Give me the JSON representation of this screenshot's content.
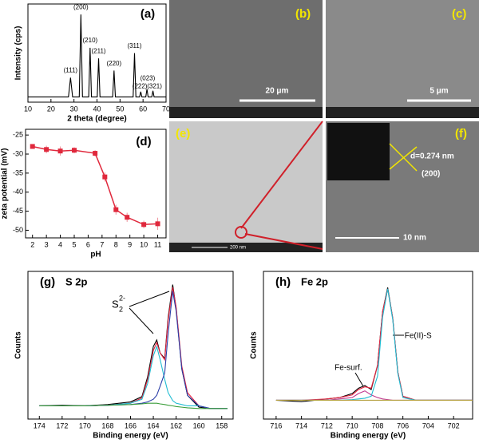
{
  "chart_data": [
    {
      "type": "line",
      "panel_label": "(a)",
      "x_label": "2 theta (degree)",
      "y_label": "Intensity (cps)",
      "xlim": [
        10,
        70
      ],
      "xticks": [
        10,
        20,
        30,
        40,
        50,
        60,
        70
      ],
      "ylim": [
        0,
        112
      ],
      "x": [
        10,
        27.6,
        28.5,
        29.4,
        32.3,
        33,
        33.7,
        36.4,
        37,
        37.6,
        40.1,
        40.7,
        41.3,
        46.8,
        47.4,
        48,
        55.7,
        56.3,
        56.9,
        58.5,
        59,
        59.5,
        61.2,
        61.7,
        62.2,
        63.8,
        64.3,
        64.8,
        70
      ],
      "series": [
        {
          "color": "#000000",
          "values": [
            6,
            6,
            28,
            6,
            6,
            100,
            6,
            6,
            62,
            6,
            6,
            50,
            6,
            6,
            36,
            6,
            6,
            56,
            6,
            6,
            12,
            6,
            6,
            15,
            6,
            6,
            13,
            6,
            6
          ]
        }
      ],
      "annotations": [
        {
          "label": "(111)",
          "x": 28.5,
          "y": 36
        },
        {
          "label": "(200)",
          "x": 33,
          "y": 108
        },
        {
          "label": "(210)",
          "x": 37,
          "y": 70
        },
        {
          "label": "(211)",
          "x": 40.7,
          "y": 58
        },
        {
          "label": "(220)",
          "x": 47.4,
          "y": 44
        },
        {
          "label": "(311)",
          "x": 56.3,
          "y": 64
        },
        {
          "label": "(222)",
          "x": 58.6,
          "y": 18
        },
        {
          "label": "(023)",
          "x": 62,
          "y": 27
        },
        {
          "label": "(321)",
          "x": 65,
          "y": 18
        }
      ]
    },
    {
      "type": "line",
      "panel_label": "(d)",
      "x_label": "pH",
      "y_label": "zeta potential (mV)",
      "xlim": [
        1.5,
        11.6
      ],
      "xticks": [
        2,
        3,
        4,
        5,
        6,
        7,
        8,
        9,
        10,
        11
      ],
      "ylim": [
        -52,
        -23.5
      ],
      "yticks": [
        -25,
        -30,
        -35,
        -40,
        -45,
        -50
      ],
      "x": [
        2,
        3,
        4,
        5,
        6.5,
        7.2,
        8,
        8.8,
        10,
        11
      ],
      "series": [
        {
          "color": "#e0283c",
          "marker": "square",
          "values": [
            -28,
            -28.8,
            -29.2,
            -29,
            -29.8,
            -36,
            -44.6,
            -46.6,
            -48.5,
            -48.3
          ],
          "errors": [
            0.6,
            1,
            1.2,
            0.8,
            0.8,
            1.2,
            1.3,
            1.2,
            1,
            1.6
          ]
        }
      ],
      "annotations": []
    },
    {
      "type": "line",
      "panel_label": "(g)",
      "title": "S 2p",
      "x_label": "Binding energy (eV)",
      "y_label": "Counts",
      "xlim": [
        175,
        157
      ],
      "xticks": [
        174,
        172,
        170,
        168,
        166,
        164,
        162,
        160,
        158
      ],
      "ylim": [
        0,
        112
      ],
      "x": [
        174,
        172,
        170,
        168,
        166,
        165,
        164.5,
        164,
        163.7,
        163.4,
        163,
        162.7,
        162.3,
        162,
        161.5,
        161,
        160,
        159,
        158,
        157.5
      ],
      "series": [
        {
          "color": "#000000",
          "values": [
            10,
            10.5,
            10,
            11,
            13,
            17,
            32,
            55,
            60,
            50,
            46,
            77,
            102,
            84,
            38,
            18,
            9,
            8,
            8,
            8
          ]
        },
        {
          "color": "#e8233f",
          "values": [
            10,
            10,
            10,
            10.5,
            12,
            16,
            30,
            52,
            58,
            50,
            45,
            75,
            100,
            85,
            40,
            20,
            10,
            8,
            8,
            8
          ]
        },
        {
          "color": "#1fbcd2",
          "values": [
            10,
            10,
            10,
            10.5,
            12,
            15,
            27,
            48,
            55,
            45,
            30,
            20,
            14,
            12,
            11,
            10,
            10,
            8,
            8,
            8
          ]
        },
        {
          "color": "#2b3ea8",
          "values": [
            10,
            10,
            10,
            10.5,
            11,
            12,
            13,
            15,
            18,
            25,
            35,
            65,
            97,
            82,
            38,
            18,
            10,
            8,
            8,
            8
          ]
        },
        {
          "color": "#3a9e3a",
          "values": [
            10,
            10,
            10,
            10.5,
            11,
            11.5,
            12,
            12,
            12,
            11.5,
            11,
            10.5,
            10,
            9.5,
            9,
            8.5,
            8,
            8,
            8,
            8
          ]
        }
      ],
      "annotations": []
    },
    {
      "type": "line",
      "panel_label": "(h)",
      "title": "Fe 2p",
      "x_label": "Binding energy (eV)",
      "y_label": "Counts",
      "xlim": [
        717,
        700.5
      ],
      "xticks": [
        716,
        714,
        712,
        710,
        708,
        706,
        704,
        702
      ],
      "ylim": [
        0,
        110
      ],
      "x": [
        716,
        714,
        712,
        711,
        710,
        709.5,
        709,
        708.5,
        708,
        707.6,
        707.2,
        706.8,
        706.4,
        706,
        705,
        704,
        702,
        700.5
      ],
      "series": [
        {
          "color": "#000000",
          "values": [
            14,
            13,
            15,
            16,
            19,
            23,
            25,
            22,
            40,
            80,
            98,
            75,
            35,
            17,
            14,
            14,
            14,
            14
          ]
        },
        {
          "color": "#e8233f",
          "values": [
            14,
            14,
            15,
            16,
            18,
            22,
            24,
            23,
            40,
            80,
            97,
            75,
            35,
            17,
            14,
            14,
            14,
            14
          ]
        },
        {
          "color": "#c0398f",
          "values": [
            14,
            14,
            14,
            15,
            16,
            19,
            21,
            18,
            16,
            15,
            14.5,
            14,
            14,
            14,
            14,
            14,
            14,
            14
          ]
        },
        {
          "color": "#1fbcd2",
          "values": [
            14,
            14,
            14,
            14,
            14.5,
            15,
            15.5,
            17,
            32,
            76,
            97,
            74,
            34,
            16,
            14,
            14,
            14,
            14
          ]
        },
        {
          "color": "#b5a040",
          "values": [
            14,
            14,
            14,
            14,
            14,
            14,
            14,
            14,
            14,
            14,
            14,
            14,
            14,
            14,
            14,
            14,
            14,
            14
          ]
        }
      ],
      "annotations": [
        {
          "label": "Fe-surf.",
          "x": 710.3,
          "y": 38
        },
        {
          "label": "Fe(II)-S",
          "x": 704.8,
          "y": 62
        }
      ]
    }
  ],
  "species_label": {
    "base": "S",
    "sub": "2",
    "sup": "2-"
  },
  "images": [
    {
      "panel_label": "(b)",
      "scale_bar": "20 μm"
    },
    {
      "panel_label": "(c)",
      "scale_bar": "5 μm"
    },
    {
      "panel_label": "(e)",
      "scale_bar": "200 nm"
    },
    {
      "panel_label": "(f)",
      "scale_bar": "10 nm",
      "spacing": "d=0.274 nm",
      "plane": "(200)"
    }
  ]
}
